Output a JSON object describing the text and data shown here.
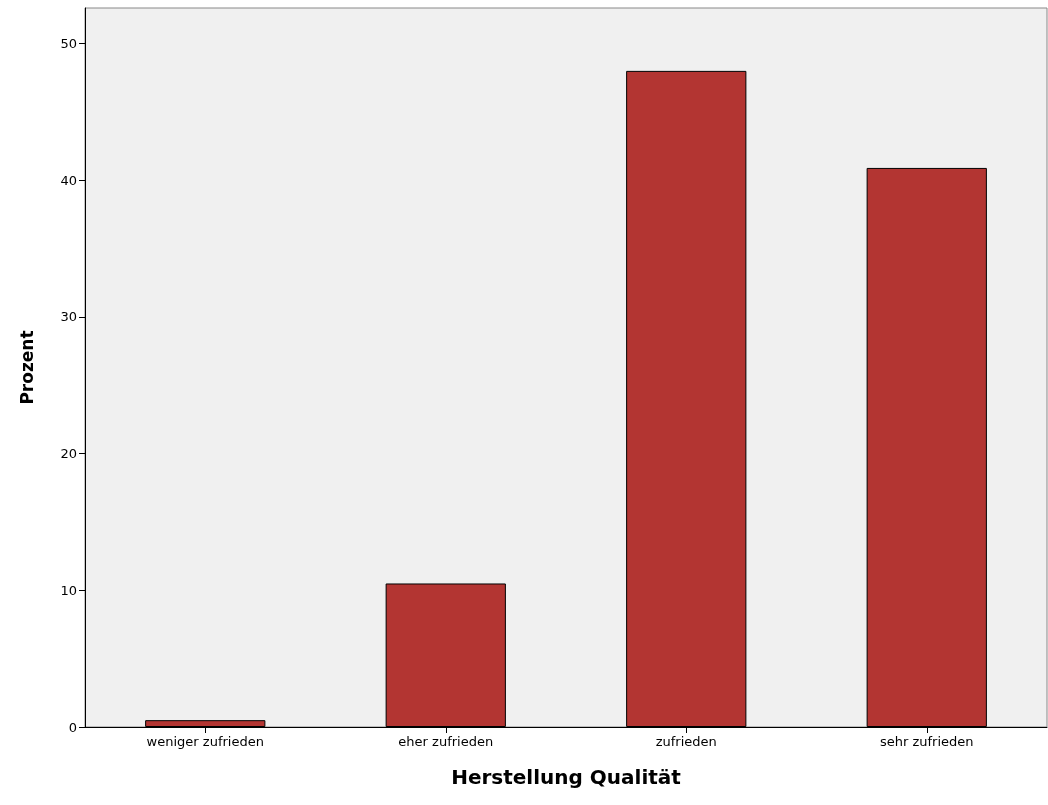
{
  "chart_data": {
    "type": "bar",
    "xlabel": "Herstellung Qualität",
    "ylabel": "Prozent",
    "categories": [
      "weniger zufrieden",
      "eher zufrieden",
      "zufrieden",
      "sehr zufrieden"
    ],
    "values": [
      0.5,
      10.5,
      48.0,
      40.9
    ],
    "color": "#b33532",
    "ylim": [
      0,
      52.6
    ],
    "yticks": [
      0,
      10,
      20,
      30,
      40,
      50
    ],
    "grid": false
  }
}
